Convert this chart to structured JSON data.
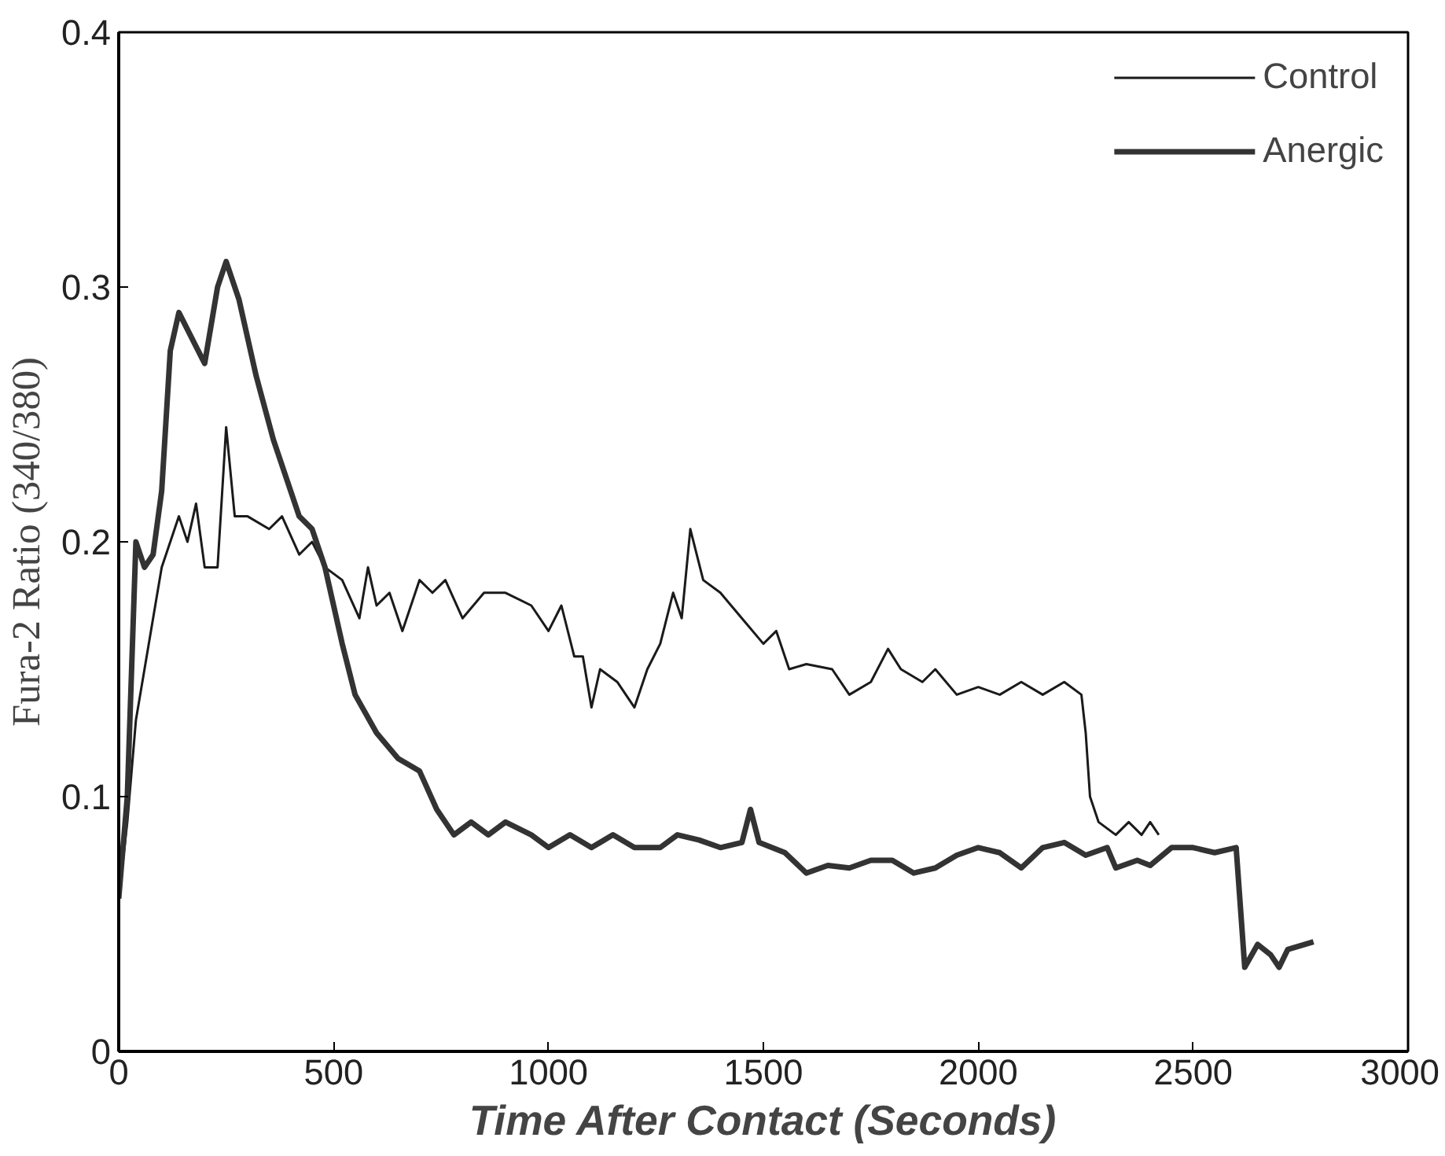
{
  "chart_data": {
    "type": "line",
    "xlabel": "Time After Contact (Seconds)",
    "ylabel": "Fura-2 Ratio (340/380)",
    "xlim": [
      0,
      3000
    ],
    "ylim": [
      0,
      0.4
    ],
    "xticks": [
      0,
      500,
      1000,
      1500,
      2000,
      2500,
      3000
    ],
    "yticks": [
      {
        "value": 0,
        "label": "0"
      },
      0.1,
      0.2,
      0.3,
      0.4
    ],
    "grid": false,
    "legend": "top right",
    "marker": "none",
    "line_style": "solid",
    "series": [
      {
        "name": "Control",
        "color": "#1a1a1a",
        "x": [
          0,
          20,
          40,
          60,
          80,
          100,
          120,
          140,
          160,
          180,
          200,
          230,
          250,
          270,
          300,
          350,
          380,
          420,
          450,
          480,
          520,
          560,
          580,
          600,
          630,
          660,
          700,
          730,
          760,
          800,
          850,
          900,
          960,
          1000,
          1030,
          1060,
          1080,
          1100,
          1120,
          1160,
          1200,
          1230,
          1260,
          1290,
          1310,
          1330,
          1360,
          1400,
          1450,
          1500,
          1530,
          1560,
          1600,
          1660,
          1700,
          1750,
          1790,
          1820,
          1870,
          1900,
          1950,
          2000,
          2050,
          2100,
          2150,
          2200,
          2240,
          2250,
          2260,
          2280,
          2320,
          2350,
          2380,
          2400,
          2420
        ],
        "values": [
          0.06,
          0.09,
          0.13,
          0.15,
          0.17,
          0.19,
          0.2,
          0.21,
          0.2,
          0.215,
          0.19,
          0.19,
          0.245,
          0.21,
          0.21,
          0.205,
          0.21,
          0.195,
          0.2,
          0.19,
          0.185,
          0.17,
          0.19,
          0.175,
          0.18,
          0.165,
          0.185,
          0.18,
          0.185,
          0.17,
          0.18,
          0.18,
          0.175,
          0.165,
          0.175,
          0.155,
          0.155,
          0.135,
          0.15,
          0.145,
          0.135,
          0.15,
          0.16,
          0.18,
          0.17,
          0.205,
          0.185,
          0.18,
          0.17,
          0.16,
          0.165,
          0.15,
          0.152,
          0.15,
          0.14,
          0.145,
          0.158,
          0.15,
          0.145,
          0.15,
          0.14,
          0.143,
          0.14,
          0.145,
          0.14,
          0.145,
          0.14,
          0.125,
          0.1,
          0.09,
          0.085,
          0.09,
          0.085,
          0.09,
          0.085
        ]
      },
      {
        "name": "Anergic",
        "color": "#333333",
        "x": [
          0,
          20,
          40,
          60,
          80,
          100,
          120,
          140,
          170,
          200,
          230,
          250,
          280,
          320,
          360,
          400,
          420,
          450,
          480,
          520,
          550,
          600,
          650,
          700,
          740,
          780,
          820,
          860,
          900,
          960,
          1000,
          1050,
          1100,
          1150,
          1200,
          1260,
          1300,
          1350,
          1400,
          1450,
          1470,
          1490,
          1550,
          1600,
          1650,
          1700,
          1750,
          1800,
          1850,
          1900,
          1950,
          2000,
          2050,
          2100,
          2150,
          2200,
          2250,
          2300,
          2320,
          2370,
          2400,
          2450,
          2500,
          2550,
          2600,
          2620,
          2650,
          2680,
          2700,
          2720,
          2780
        ],
        "values": [
          0.06,
          0.1,
          0.2,
          0.19,
          0.195,
          0.22,
          0.275,
          0.29,
          0.28,
          0.27,
          0.3,
          0.31,
          0.295,
          0.265,
          0.24,
          0.22,
          0.21,
          0.205,
          0.19,
          0.16,
          0.14,
          0.125,
          0.115,
          0.11,
          0.095,
          0.085,
          0.09,
          0.085,
          0.09,
          0.085,
          0.08,
          0.085,
          0.08,
          0.085,
          0.08,
          0.08,
          0.085,
          0.083,
          0.08,
          0.082,
          0.095,
          0.082,
          0.078,
          0.07,
          0.073,
          0.072,
          0.075,
          0.075,
          0.07,
          0.072,
          0.077,
          0.08,
          0.078,
          0.072,
          0.08,
          0.082,
          0.077,
          0.08,
          0.072,
          0.075,
          0.073,
          0.08,
          0.08,
          0.078,
          0.08,
          0.033,
          0.042,
          0.038,
          0.033,
          0.04,
          0.043
        ]
      }
    ]
  }
}
